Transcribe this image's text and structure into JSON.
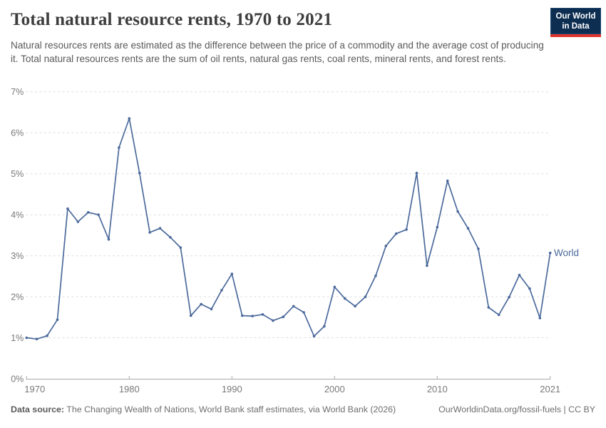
{
  "header": {
    "title": "Total natural resource rents, 1970 to 2021",
    "subtitle": "Natural resources rents are estimated as the difference between the price of a commodity and the average cost of producing it. Total natural resources rents are the sum of oil rents, natural gas rents, coal rents, mineral rents, and forest rents.",
    "logo": {
      "line1": "Our World",
      "line2": "in Data"
    }
  },
  "chart_data": {
    "type": "line",
    "title": "Total natural resource rents, 1970 to 2021",
    "xlabel": "",
    "ylabel": "",
    "xlim": [
      1970,
      2021
    ],
    "ylim": [
      0,
      7
    ],
    "x_ticks": [
      1970,
      1980,
      1990,
      2000,
      2010,
      2021
    ],
    "y_tick_labels": [
      "0%",
      "1%",
      "2%",
      "3%",
      "4%",
      "5%",
      "6%",
      "7%"
    ],
    "grid": "horizontal-dashed",
    "legend_position": "end-of-line-label",
    "categories": [
      1970,
      1971,
      1972,
      1973,
      1974,
      1975,
      1976,
      1977,
      1978,
      1979,
      1980,
      1981,
      1982,
      1983,
      1984,
      1985,
      1986,
      1987,
      1988,
      1989,
      1990,
      1991,
      1992,
      1993,
      1994,
      1995,
      1996,
      1997,
      1998,
      1999,
      2000,
      2001,
      2002,
      2003,
      2004,
      2005,
      2006,
      2007,
      2008,
      2009,
      2010,
      2011,
      2012,
      2013,
      2014,
      2015,
      2016,
      2017,
      2018,
      2019,
      2020,
      2021
    ],
    "series": [
      {
        "name": "World",
        "color": "#4C6A9C",
        "unit": "%",
        "values": [
          1.0,
          0.97,
          1.05,
          1.44,
          4.15,
          3.83,
          4.06,
          4.0,
          3.4,
          5.64,
          6.35,
          5.02,
          3.57,
          3.67,
          3.45,
          3.2,
          1.54,
          1.82,
          1.7,
          2.16,
          2.56,
          1.54,
          1.53,
          1.57,
          1.42,
          1.51,
          1.77,
          1.62,
          1.04,
          1.28,
          2.24,
          1.96,
          1.77,
          2.0,
          2.51,
          3.24,
          3.54,
          3.64,
          5.02,
          2.76,
          3.7,
          4.83,
          4.08,
          3.67,
          3.17,
          1.74,
          1.56,
          1.99,
          2.53,
          2.2,
          1.48,
          3.07
        ]
      }
    ]
  },
  "footer": {
    "datasource_label": "Data source:",
    "datasource_text": " The Changing Wealth of Nations, World Bank staff estimates, via World Bank (2026)",
    "link_text": "OurWorldinData.org/fossil-fuels | CC BY"
  },
  "colors": {
    "series_line": "#4C6A9C",
    "grid_line": "#dedede",
    "axis_line": "#a8a8a8",
    "tick_label": "#78797c",
    "title": "#3d3d3d",
    "subtitle": "#595959",
    "logo_bg": "#0d2d51",
    "logo_red": "#e0352c"
  }
}
